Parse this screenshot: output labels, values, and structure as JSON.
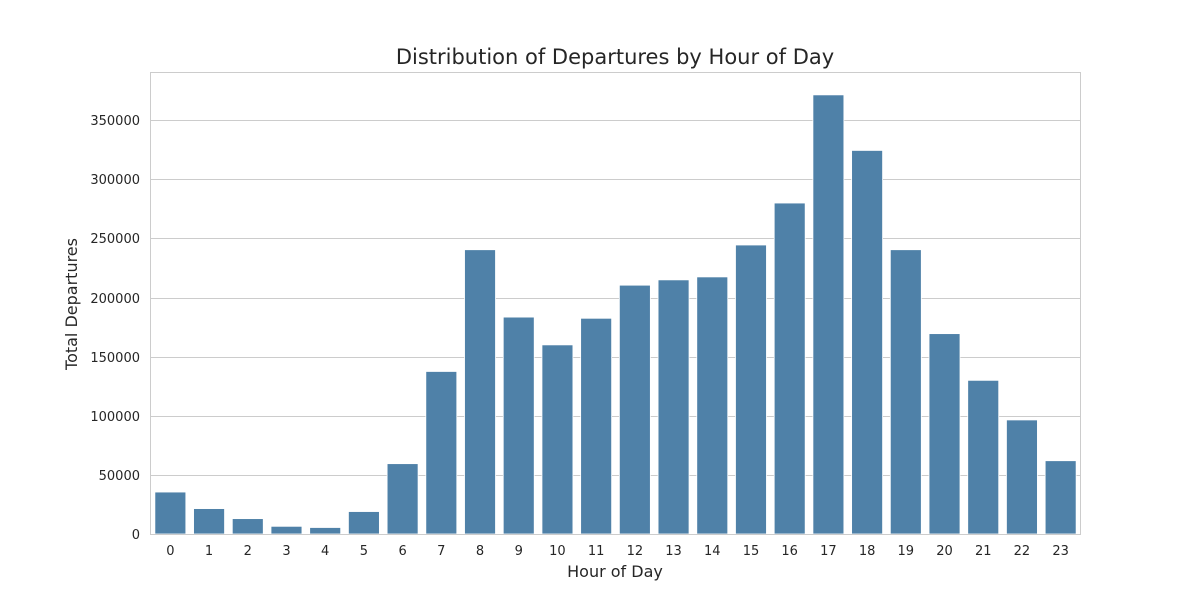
{
  "chart_data": {
    "type": "bar",
    "title": "Distribution of Departures by Hour of Day",
    "xlabel": "Hour of Day",
    "ylabel": "Total Departures",
    "categories": [
      "0",
      "1",
      "2",
      "3",
      "4",
      "5",
      "6",
      "7",
      "8",
      "9",
      "10",
      "11",
      "12",
      "13",
      "14",
      "15",
      "16",
      "17",
      "18",
      "19",
      "20",
      "21",
      "22",
      "23"
    ],
    "values": [
      35500,
      21500,
      13000,
      6500,
      5500,
      19000,
      59500,
      137500,
      240500,
      183500,
      160000,
      182500,
      210500,
      215000,
      217500,
      244500,
      280000,
      371500,
      324500,
      240500,
      169500,
      130000,
      96500,
      62000
    ],
    "ylim": [
      0,
      390000
    ],
    "yticks": [
      0,
      50000,
      100000,
      150000,
      200000,
      250000,
      300000,
      350000
    ],
    "ytick_labels": [
      "0",
      "50000",
      "100000",
      "150000",
      "200000",
      "250000",
      "300000",
      "350000"
    ],
    "grid": true,
    "bar_color": "#4f81a8",
    "grid_color": "#cccccc"
  }
}
